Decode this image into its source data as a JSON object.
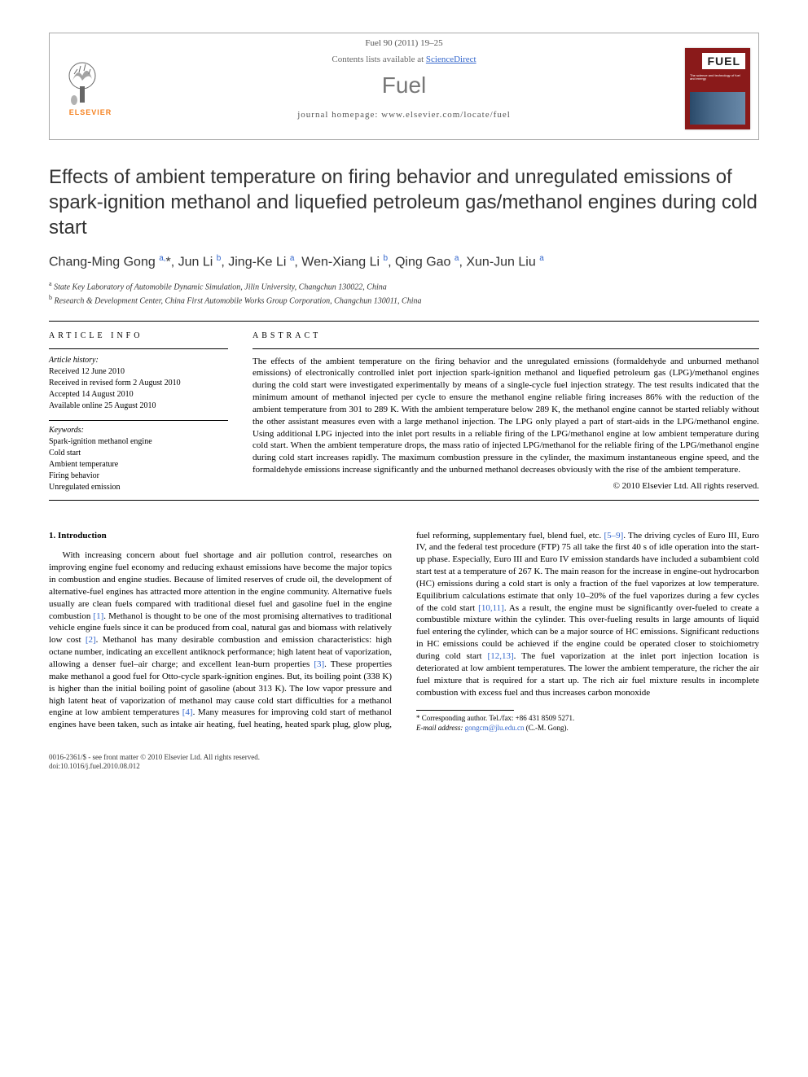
{
  "header": {
    "citation": "Fuel 90 (2011) 19–25",
    "contents_prefix": "Contents lists available at ",
    "contents_link": "ScienceDirect",
    "journal": "Fuel",
    "homepage_label": "journal homepage: ",
    "homepage_url": "www.elsevier.com/locate/fuel",
    "publisher_logo_text": "ELSEVIER",
    "cover_label": "FUEL"
  },
  "title": "Effects of ambient temperature on firing behavior and unregulated emissions of spark-ignition methanol and liquefied petroleum gas/methanol engines during cold start",
  "authors_html": "Chang-Ming Gong <sup>a,</sup>*, Jun Li <sup>b</sup>, Jing-Ke Li <sup>a</sup>, Wen-Xiang Li <sup>b</sup>, Qing Gao <sup>a</sup>, Xun-Jun Liu <sup>a</sup>",
  "affiliations": [
    "a State Key Laboratory of Automobile Dynamic Simulation, Jilin University, Changchun 130022, China",
    "b Research & Development Center, China First Automobile Works Group Corporation, Changchun 130011, China"
  ],
  "article_info": {
    "heading": "ARTICLE INFO",
    "history_label": "Article history:",
    "history": [
      "Received 12 June 2010",
      "Received in revised form 2 August 2010",
      "Accepted 14 August 2010",
      "Available online 25 August 2010"
    ],
    "keywords_label": "Keywords:",
    "keywords": [
      "Spark-ignition methanol engine",
      "Cold start",
      "Ambient temperature",
      "Firing behavior",
      "Unregulated emission"
    ]
  },
  "abstract": {
    "heading": "ABSTRACT",
    "text": "The effects of the ambient temperature on the firing behavior and the unregulated emissions (formaldehyde and unburned methanol emissions) of electronically controlled inlet port injection spark-ignition methanol and liquefied petroleum gas (LPG)/methanol engines during the cold start were investigated experimentally by means of a single-cycle fuel injection strategy. The test results indicated that the minimum amount of methanol injected per cycle to ensure the methanol engine reliable firing increases 86% with the reduction of the ambient temperature from 301 to 289 K. With the ambient temperature below 289 K, the methanol engine cannot be started reliably without the other assistant measures even with a large methanol injection. The LPG only played a part of start-aids in the LPG/methanol engine. Using additional LPG injected into the inlet port results in a reliable firing of the LPG/methanol engine at low ambient temperature during cold start. When the ambient temperature drops, the mass ratio of injected LPG/methanol for the reliable firing of the LPG/methanol engine during cold start increases rapidly. The maximum combustion pressure in the cylinder, the maximum instantaneous engine speed, and the formaldehyde emissions increase significantly and the unburned methanol decreases obviously with the rise of the ambient temperature.",
    "copyright": "© 2010 Elsevier Ltd. All rights reserved."
  },
  "section1": {
    "heading": "1. Introduction",
    "para": "With increasing concern about fuel shortage and air pollution control, researches on improving engine fuel economy and reducing exhaust emissions have become the major topics in combustion and engine studies. Because of limited reserves of crude oil, the development of alternative-fuel engines has attracted more attention in the engine community. Alternative fuels usually are clean fuels compared with traditional diesel fuel and gasoline fuel in the engine combustion [1]. Methanol is thought to be one of the most promising alternatives to traditional vehicle engine fuels since it can be produced from coal, natural gas and biomass with relatively low cost [2]. Methanol has many desirable combustion and emission characteristics: high octane number, indicating an excellent antiknock performance; high latent heat of vaporization, allowing a denser fuel–air charge; and excellent lean-burn properties [3]. These properties make methanol a good fuel for Otto-cycle spark-ignition engines. But, its boiling point (338 K) is higher than the initial boiling point of gasoline (about 313 K). The low vapor pressure and high latent heat of vaporization of methanol may cause cold start difficulties for a methanol engine at low ambient temperatures [4]. Many measures for improving cold start of methanol engines have been taken, such as intake air heating, fuel heating, heated spark plug, glow plug, fuel reforming, supplementary fuel, blend fuel, etc. [5–9]. The driving cycles of Euro III, Euro IV, and the federal test procedure (FTP) 75 all take the first 40 s of idle operation into the start-up phase. Especially, Euro III and Euro IV emission standards have included a subambient cold start test at a temperature of 267 K. The main reason for the increase in engine-out hydrocarbon (HC) emissions during a cold start is only a fraction of the fuel vaporizes at low temperature. Equilibrium calculations estimate that only 10–20% of the fuel vaporizes during a few cycles of the cold start [10,11]. As a result, the engine must be significantly over-fueled to create a combustible mixture within the cylinder. This over-fueling results in large amounts of liquid fuel entering the cylinder, which can be a major source of HC emissions. Significant reductions in HC emissions could be achieved if the engine could be operated closer to stoichiometry during cold start [12,13]. The fuel vaporization at the inlet port injection location is deteriorated at low ambient temperatures. The lower the ambient temperature, the richer the air fuel mixture that is required for a start up. The rich air fuel mixture results in incomplete combustion with excess fuel and thus increases carbon monoxide"
  },
  "footnote": {
    "corr": "* Corresponding author. Tel./fax: +86 431 8509 5271.",
    "email_label": "E-mail address: ",
    "email": "gongcm@jlu.edu.cn",
    "email_suffix": " (C.-M. Gong)."
  },
  "footer": {
    "line1": "0016-2361/$ - see front matter © 2010 Elsevier Ltd. All rights reserved.",
    "line2": "doi:10.1016/j.fuel.2010.08.012"
  },
  "colors": {
    "link": "#3366cc",
    "elsevier_orange": "#f58220",
    "cover_bg": "#8a1a1a",
    "text": "#000000",
    "muted": "#555555"
  }
}
